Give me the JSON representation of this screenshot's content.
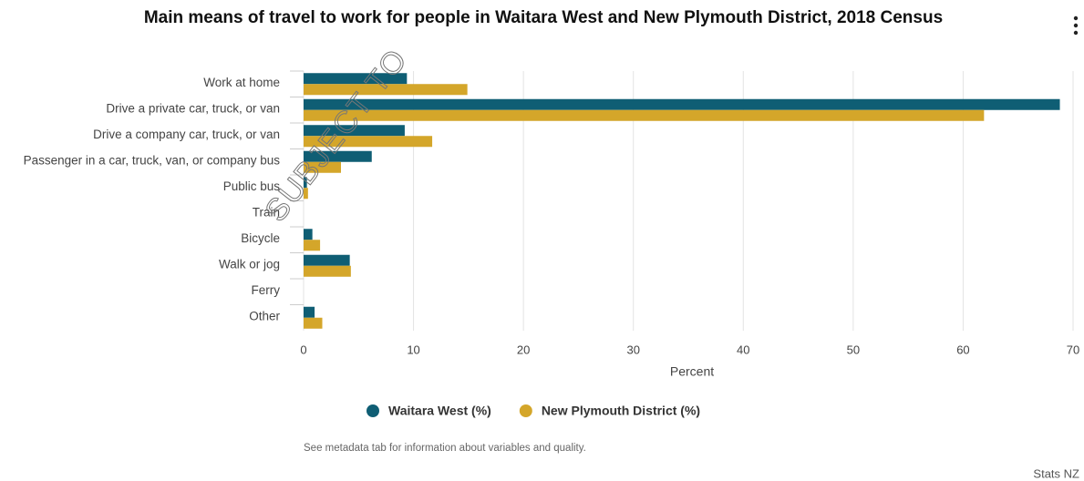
{
  "chart_data": {
    "type": "bar",
    "orientation": "horizontal",
    "title": "Main means of travel to work for people in Waitara West and New Plymouth District, 2018 Census",
    "categories": [
      "Work at home",
      "Drive a private car, truck, or van",
      "Drive a company car, truck, or van",
      "Passenger in a car, truck, van, or company bus",
      "Public bus",
      "Train",
      "Bicycle",
      "Walk or jog",
      "Ferry",
      "Other"
    ],
    "series": [
      {
        "name": "Waitara West (%)",
        "color": "#0f5e74",
        "values": [
          9.4,
          68.8,
          9.2,
          6.2,
          0.3,
          0,
          0.8,
          4.2,
          0,
          1.0
        ]
      },
      {
        "name": "New Plymouth District (%)",
        "color": "#d4a62a",
        "values": [
          14.9,
          61.9,
          11.7,
          3.4,
          0.4,
          0,
          1.5,
          4.3,
          0,
          1.7
        ]
      }
    ],
    "xlabel": "Percent",
    "xlim": [
      0,
      70
    ],
    "xticks": [
      0,
      10,
      20,
      30,
      40,
      50,
      60,
      70
    ],
    "grid": true,
    "legend": "bottom",
    "footnote": "See metadata tab for information about variables and quality.",
    "credit": "Stats NZ",
    "watermark": "SUBJECT TO"
  }
}
